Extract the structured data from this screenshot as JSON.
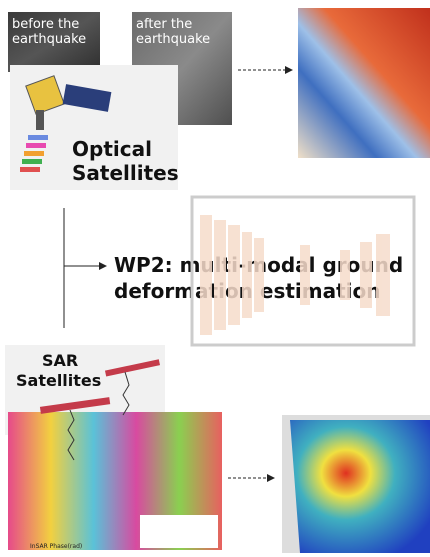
{
  "images": {
    "before": "before the earthquake",
    "after": "after the earthquake",
    "interferogram_axis": "InSAR Phase(rad)"
  },
  "optical_panel": {
    "label_line1": "Optical",
    "label_line2": "Satellites"
  },
  "sar_panel": {
    "label_line1": "SAR",
    "label_line2": "Satellites"
  },
  "work_package": {
    "line1": "WP2: multi-modal ground",
    "line2": "deformation estimation"
  }
}
